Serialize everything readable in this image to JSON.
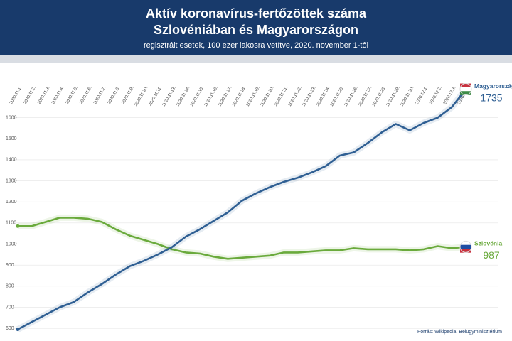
{
  "chart_data": {
    "type": "line",
    "title": "Aktív koronavírus-fertőzöttek száma",
    "title2": "Szlovéniában és Magyarországon",
    "subtitle": "regisztrált esetek, 100 ezer lakosra vetítve, 2020. november 1-től",
    "source": "Forrás: Wikipedia, Belügyminisztérium",
    "categories": [
      "2020.11.1.",
      "2020.11.2.",
      "2020.11.3.",
      "2020.11.4.",
      "2020.11.5.",
      "2020.11.6.",
      "2020.11.7.",
      "2020.11.8.",
      "2020.11.9.",
      "2020.11.10.",
      "2020.11.11.",
      "2020.11.13.",
      "2020.11.14.",
      "2020.11.15.",
      "2020.11.16.",
      "2020.11.17.",
      "2020.11.18.",
      "2020.11.19.",
      "2020.11.20.",
      "2020.11.21.",
      "2020.11.22.",
      "2020.11.23.",
      "2020.11.24.",
      "2020.11.25.",
      "2020.11.26.",
      "2020.11.27.",
      "2020.11.28.",
      "2020.11.29.",
      "2020.11.30.",
      "2020.12.1.",
      "2020.12.2.",
      "2020.12.3.",
      "2020.12.4."
    ],
    "series": [
      {
        "name": "Magyarország",
        "color": "#2f5f93",
        "end_label": "1735",
        "values": [
          595,
          630,
          665,
          700,
          725,
          770,
          810,
          855,
          895,
          920,
          950,
          985,
          1035,
          1070,
          1110,
          1150,
          1205,
          1240,
          1270,
          1295,
          1315,
          1340,
          1370,
          1420,
          1435,
          1480,
          1530,
          1570,
          1540,
          1575,
          1600,
          1650,
          1735
        ]
      },
      {
        "name": "Szlovénia",
        "color": "#6aaa3c",
        "end_label": "987",
        "values": [
          1085,
          1085,
          1105,
          1125,
          1125,
          1120,
          1105,
          1070,
          1040,
          1020,
          1000,
          975,
          960,
          955,
          940,
          930,
          935,
          940,
          945,
          960,
          960,
          965,
          970,
          970,
          980,
          975,
          975,
          975,
          970,
          975,
          990,
          980,
          987
        ]
      }
    ],
    "ylim": [
      560,
      1720
    ],
    "yticks": [
      600,
      700,
      800,
      900,
      1000,
      1100,
      1200,
      1300,
      1400,
      1500,
      1600
    ],
    "grid": true
  }
}
